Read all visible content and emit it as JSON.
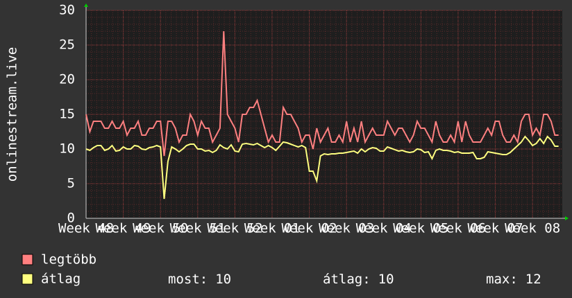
{
  "chart_data": {
    "type": "line",
    "ylabel": "onlinestream.live",
    "xlim": [
      0,
      12.8
    ],
    "ylim": [
      0,
      30
    ],
    "yticks": [
      0,
      5,
      10,
      15,
      20,
      25,
      30
    ],
    "xticks": [
      {
        "value": 0,
        "label": "Week 48"
      },
      {
        "value": 1,
        "label": "Week 49"
      },
      {
        "value": 2,
        "label": "Week 50"
      },
      {
        "value": 3,
        "label": "Week 51"
      },
      {
        "value": 4,
        "label": "Week 52"
      },
      {
        "value": 5,
        "label": "Week 01"
      },
      {
        "value": 6,
        "label": "Week 02"
      },
      {
        "value": 7,
        "label": "Week 03"
      },
      {
        "value": 8,
        "label": "Week 04"
      },
      {
        "value": 9,
        "label": "Week 05"
      },
      {
        "value": 10,
        "label": "Week 06"
      },
      {
        "value": 11,
        "label": "Week 07"
      },
      {
        "value": 12,
        "label": "Week 08"
      }
    ],
    "grid": true,
    "x": [
      0,
      0.1,
      0.2,
      0.3,
      0.4,
      0.5,
      0.6,
      0.7,
      0.8,
      0.9,
      1,
      1.1,
      1.2,
      1.3,
      1.4,
      1.5,
      1.6,
      1.7,
      1.8,
      1.9,
      2,
      2.1,
      2.2,
      2.3,
      2.4,
      2.5,
      2.6,
      2.7,
      2.8,
      2.9,
      3,
      3.1,
      3.2,
      3.3,
      3.4,
      3.5,
      3.6,
      3.7,
      3.8,
      3.9,
      4,
      4.1,
      4.2,
      4.3,
      4.4,
      4.5,
      4.6,
      4.7,
      4.8,
      4.9,
      5,
      5.1,
      5.2,
      5.3,
      5.4,
      5.5,
      5.6,
      5.7,
      5.8,
      5.9,
      6,
      6.1,
      6.2,
      6.3,
      6.4,
      6.5,
      6.6,
      6.7,
      6.8,
      6.9,
      7,
      7.1,
      7.2,
      7.3,
      7.4,
      7.5,
      7.6,
      7.7,
      7.8,
      7.9,
      8,
      8.1,
      8.2,
      8.3,
      8.4,
      8.5,
      8.6,
      8.7,
      8.8,
      8.9,
      9,
      9.1,
      9.2,
      9.3,
      9.4,
      9.5,
      9.6,
      9.7,
      9.8,
      9.9,
      10,
      10.1,
      10.2,
      10.3,
      10.4,
      10.5,
      10.6,
      10.7,
      10.8,
      10.9,
      11,
      11.1,
      11.2,
      11.3,
      11.4,
      11.5,
      11.6,
      11.7,
      11.8,
      11.9,
      12,
      12.1,
      12.2,
      12.3,
      12.4,
      12.5,
      12.6,
      12.7
    ],
    "series": [
      {
        "name": "legtöbb",
        "color": "#ff8080",
        "values": [
          15,
          12.5,
          14,
          14,
          14,
          13,
          13,
          14,
          13,
          13,
          14,
          12,
          13,
          13,
          14,
          12,
          12,
          13,
          13,
          14,
          14,
          9,
          14,
          14,
          13,
          11,
          12,
          12,
          15,
          14,
          12,
          14,
          13,
          13,
          11,
          12,
          13,
          27,
          15,
          14,
          13,
          11,
          15,
          15,
          16,
          16,
          17,
          15,
          13,
          11,
          12,
          11,
          11,
          16,
          15,
          15,
          14,
          13,
          11,
          12,
          12,
          10,
          13,
          11,
          12,
          13,
          11,
          11,
          12,
          11,
          14,
          11,
          13,
          11,
          14,
          11,
          12,
          13,
          12,
          12,
          12,
          14,
          13,
          12,
          13,
          13,
          12,
          11,
          12,
          14,
          13,
          13,
          12,
          11,
          14,
          12,
          11,
          11,
          12,
          11,
          14,
          11,
          14,
          12,
          11,
          11,
          11,
          12,
          13,
          12,
          14,
          14,
          12,
          11,
          11,
          12,
          11,
          14,
          15,
          15,
          12,
          13,
          12,
          15,
          15,
          14,
          12,
          12
        ]
      },
      {
        "name": "átlag",
        "color": "#ffff80",
        "values": [
          10,
          9.8,
          10.2,
          10.5,
          10.5,
          9.8,
          10,
          10.5,
          9.7,
          9.8,
          10.3,
          10,
          10,
          10.5,
          10.4,
          10,
          9.9,
          10.2,
          10.3,
          10.5,
          10.3,
          2.8,
          8.2,
          10.3,
          10,
          9.6,
          10,
          10.5,
          10.7,
          10.7,
          10,
          10,
          9.7,
          9.8,
          9.5,
          9.8,
          10.6,
          10.2,
          10,
          10.6,
          9.7,
          9.6,
          10.7,
          10.8,
          10.7,
          10.6,
          10.8,
          10.5,
          10.2,
          10.5,
          10.2,
          9.8,
          10.4,
          11,
          10.9,
          10.7,
          10.5,
          10.3,
          10.5,
          10.2,
          6.8,
          6.8,
          5.4,
          9,
          9.3,
          9.2,
          9.3,
          9.3,
          9.4,
          9.4,
          9.5,
          9.6,
          9.7,
          9.4,
          10,
          9.6,
          10,
          10.2,
          10.1,
          9.7,
          9.7,
          10.3,
          10.1,
          9.9,
          9.7,
          9.8,
          9.6,
          9.5,
          9.6,
          10,
          9.9,
          9.5,
          9.6,
          8.6,
          9.8,
          10,
          9.8,
          9.8,
          9.7,
          9.5,
          9.6,
          9.4,
          9.4,
          9.4,
          9.5,
          8.6,
          8.6,
          8.8,
          9.6,
          9.5,
          9.4,
          9.3,
          9.2,
          9.2,
          9.5,
          10,
          10.5,
          11,
          11.8,
          11.2,
          10.5,
          10.8,
          11.5,
          10.8,
          11.8,
          11.3,
          10.4,
          10.4
        ]
      }
    ],
    "stats": [
      {
        "label": "most:",
        "value": 10
      },
      {
        "label": "átlag:",
        "value": 10
      },
      {
        "label": "max:",
        "value": 12
      }
    ]
  }
}
